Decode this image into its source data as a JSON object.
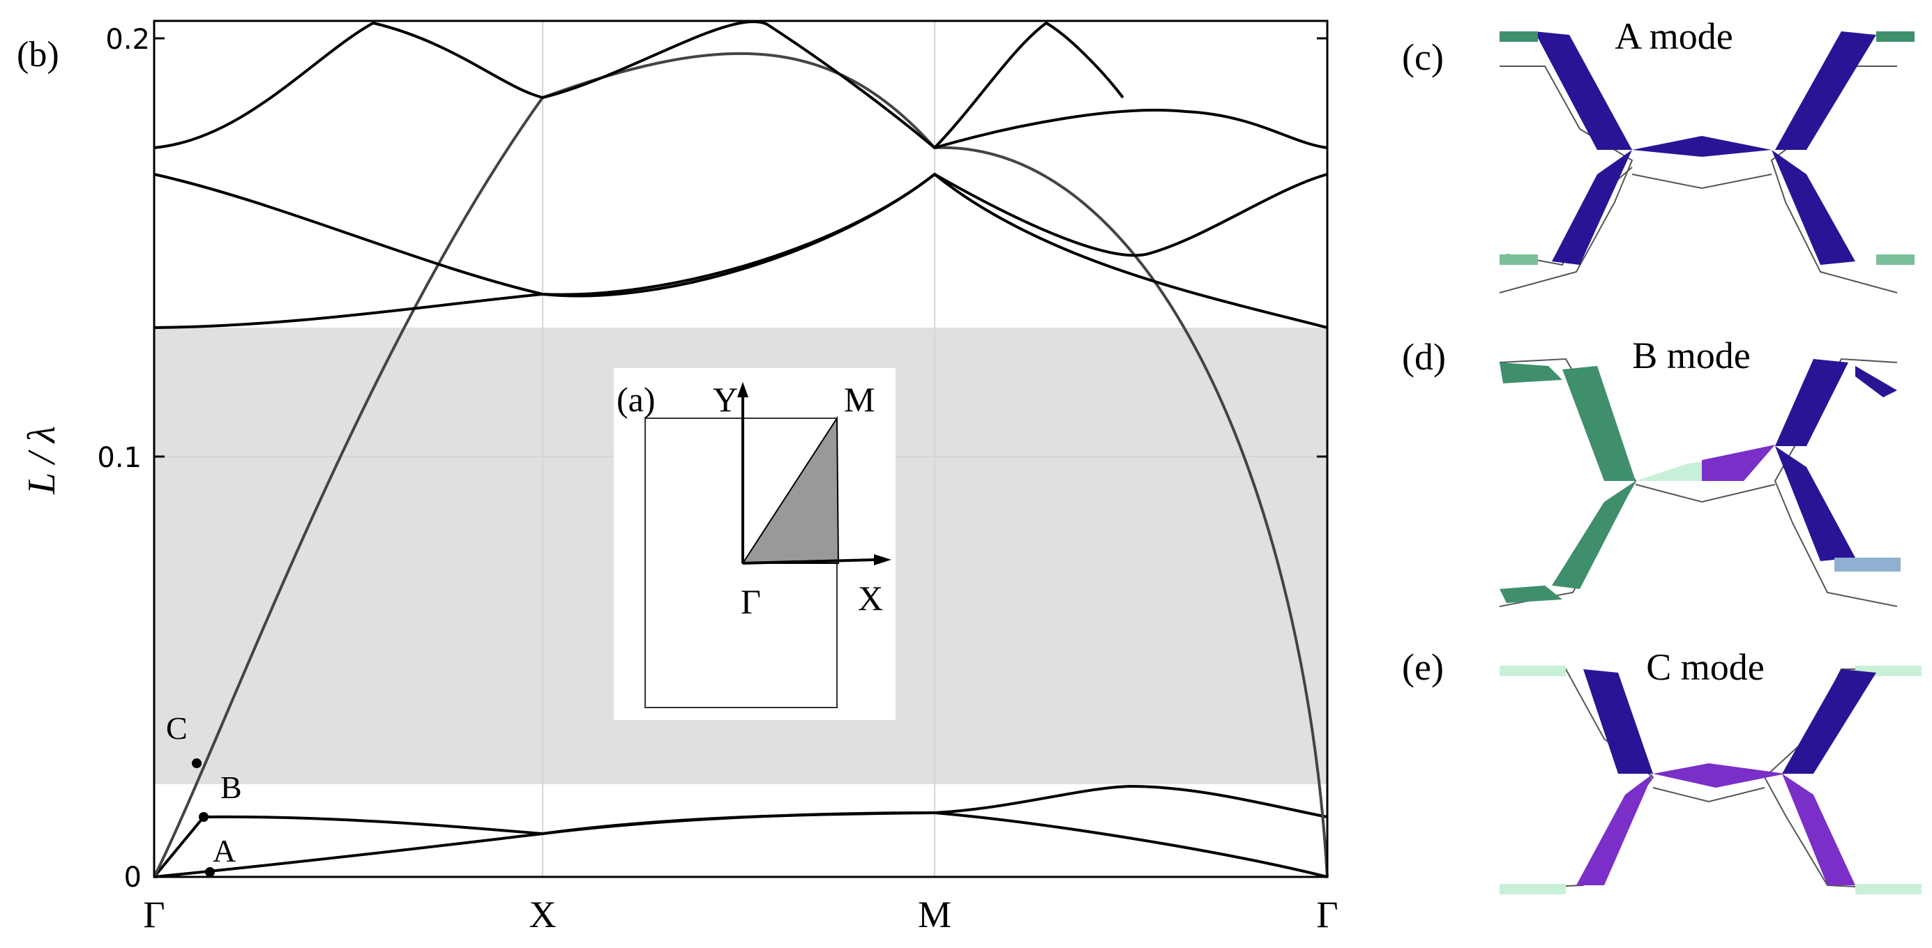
{
  "figure": {
    "panel_b": "(b)",
    "panel_a": "(a)",
    "panel_c": "(c)",
    "panel_d": "(d)",
    "panel_e": "(e)"
  },
  "band_plot": {
    "ylabel": "L / λ",
    "y_ticks": [
      "0",
      "0.1",
      "0.2"
    ],
    "x_ticks": [
      "Γ",
      "X",
      "M",
      "Γ"
    ],
    "point_labels": [
      "A",
      "B",
      "C"
    ],
    "band_gap": {
      "from": 0.022,
      "to": 0.131,
      "color": "#e0e0e0"
    }
  },
  "inset": {
    "labels": {
      "y": "Y",
      "m": "M",
      "x": "X",
      "gamma": "Γ"
    },
    "ibz_color": "#999999"
  },
  "modes": [
    {
      "label": "A mode"
    },
    {
      "label": "B mode"
    },
    {
      "label": "C mode"
    }
  ],
  "colors": {
    "navy": "#2a1496",
    "purple": "#7a2fc8",
    "green": "#3f8f6c",
    "lightgreen": "#c8f0d8"
  },
  "chart_data": {
    "type": "line",
    "x": [
      "Γ",
      "X",
      "M",
      "Γ"
    ],
    "ylim": [
      0,
      0.205
    ],
    "ylabel": "L / λ",
    "band_gap": [
      0.022,
      0.131
    ],
    "series": [
      {
        "points": [
          [
            0,
            0
          ],
          [
            0.5,
            0.0045
          ],
          [
            1,
            0.01
          ],
          [
            1.5,
            0.015
          ],
          [
            2,
            0.015
          ],
          [
            2.5,
            0.009
          ],
          [
            3,
            0
          ]
        ]
      },
      {
        "points": [
          [
            0,
            0
          ],
          [
            0.1,
            0.014
          ],
          [
            0.5,
            0.014
          ],
          [
            1,
            0.01
          ],
          [
            1.5,
            0.015
          ],
          [
            2,
            0.015
          ],
          [
            2.5,
            0.021
          ],
          [
            3,
            0.014
          ]
        ]
      },
      {
        "points": [
          [
            0,
            0
          ],
          [
            0.3,
            0.065
          ],
          [
            0.7,
            0.15
          ],
          [
            1,
            0.187
          ],
          [
            2,
            0.174
          ],
          [
            2.5,
            0.138
          ],
          [
            3,
            0
          ]
        ]
      },
      {
        "points": [
          [
            0,
            0.131
          ],
          [
            0.5,
            0.133
          ],
          [
            1,
            0.139
          ],
          [
            1.5,
            0.146
          ],
          [
            2,
            0.168
          ],
          [
            2.5,
            0.149
          ],
          [
            3,
            0.168
          ]
        ]
      },
      {
        "points": [
          [
            0,
            0.168
          ],
          [
            0.5,
            0.151
          ],
          [
            1,
            0.14
          ],
          [
            1.5,
            0.142
          ],
          [
            2,
            0.168
          ],
          [
            2.5,
            0.152
          ],
          [
            3,
            0.131
          ]
        ]
      },
      {
        "points": [
          [
            0,
            0.174
          ],
          [
            0.5,
            0.202
          ],
          [
            1,
            0.187
          ],
          [
            1.5,
            0.202
          ],
          [
            2,
            0.174
          ],
          [
            2.5,
            0.184
          ],
          [
            3,
            0.174
          ]
        ]
      },
      {
        "points": [
          [
            2,
            0.174
          ],
          [
            2.3,
            0.202
          ],
          [
            2.5,
            0.182
          ],
          [
            3,
            0.174
          ]
        ]
      }
    ],
    "markers": [
      {
        "label": "A",
        "x": 0.14,
        "y": 0.002
      },
      {
        "label": "B",
        "x": 0.12,
        "y": 0.014
      },
      {
        "label": "C",
        "x": 0.1,
        "y": 0.028
      }
    ]
  }
}
